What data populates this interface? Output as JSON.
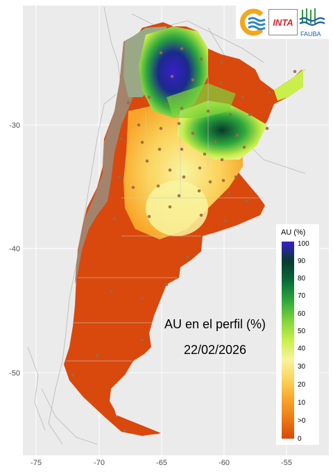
{
  "map": {
    "title_line1": "AU en el perfil (%)",
    "title_line2": "22/02/2026",
    "x_ticks": [
      "-75",
      "-70",
      "-65",
      "-60",
      "-55"
    ],
    "y_ticks": [
      "-30",
      "-40",
      "-50"
    ],
    "background": "#ebebeb",
    "grid_color": "#ffffff"
  },
  "legend": {
    "title": "AU (%)",
    "labels": [
      "100",
      "90",
      "80",
      "70",
      "60",
      "50",
      "40",
      "30",
      "20",
      "10",
      ">0",
      "0"
    ],
    "colors": [
      "#3a1ec9",
      "#053b2e",
      "#0a6b3a",
      "#2ea83c",
      "#7fd43b",
      "#c9ef4a",
      "#f8f4a0",
      "#fbd35c",
      "#f7a62a",
      "#ec7a14",
      "#d9500e",
      "#d9480c"
    ]
  },
  "logos": {
    "inta": "INTA",
    "fauba": "FAUBA"
  }
}
